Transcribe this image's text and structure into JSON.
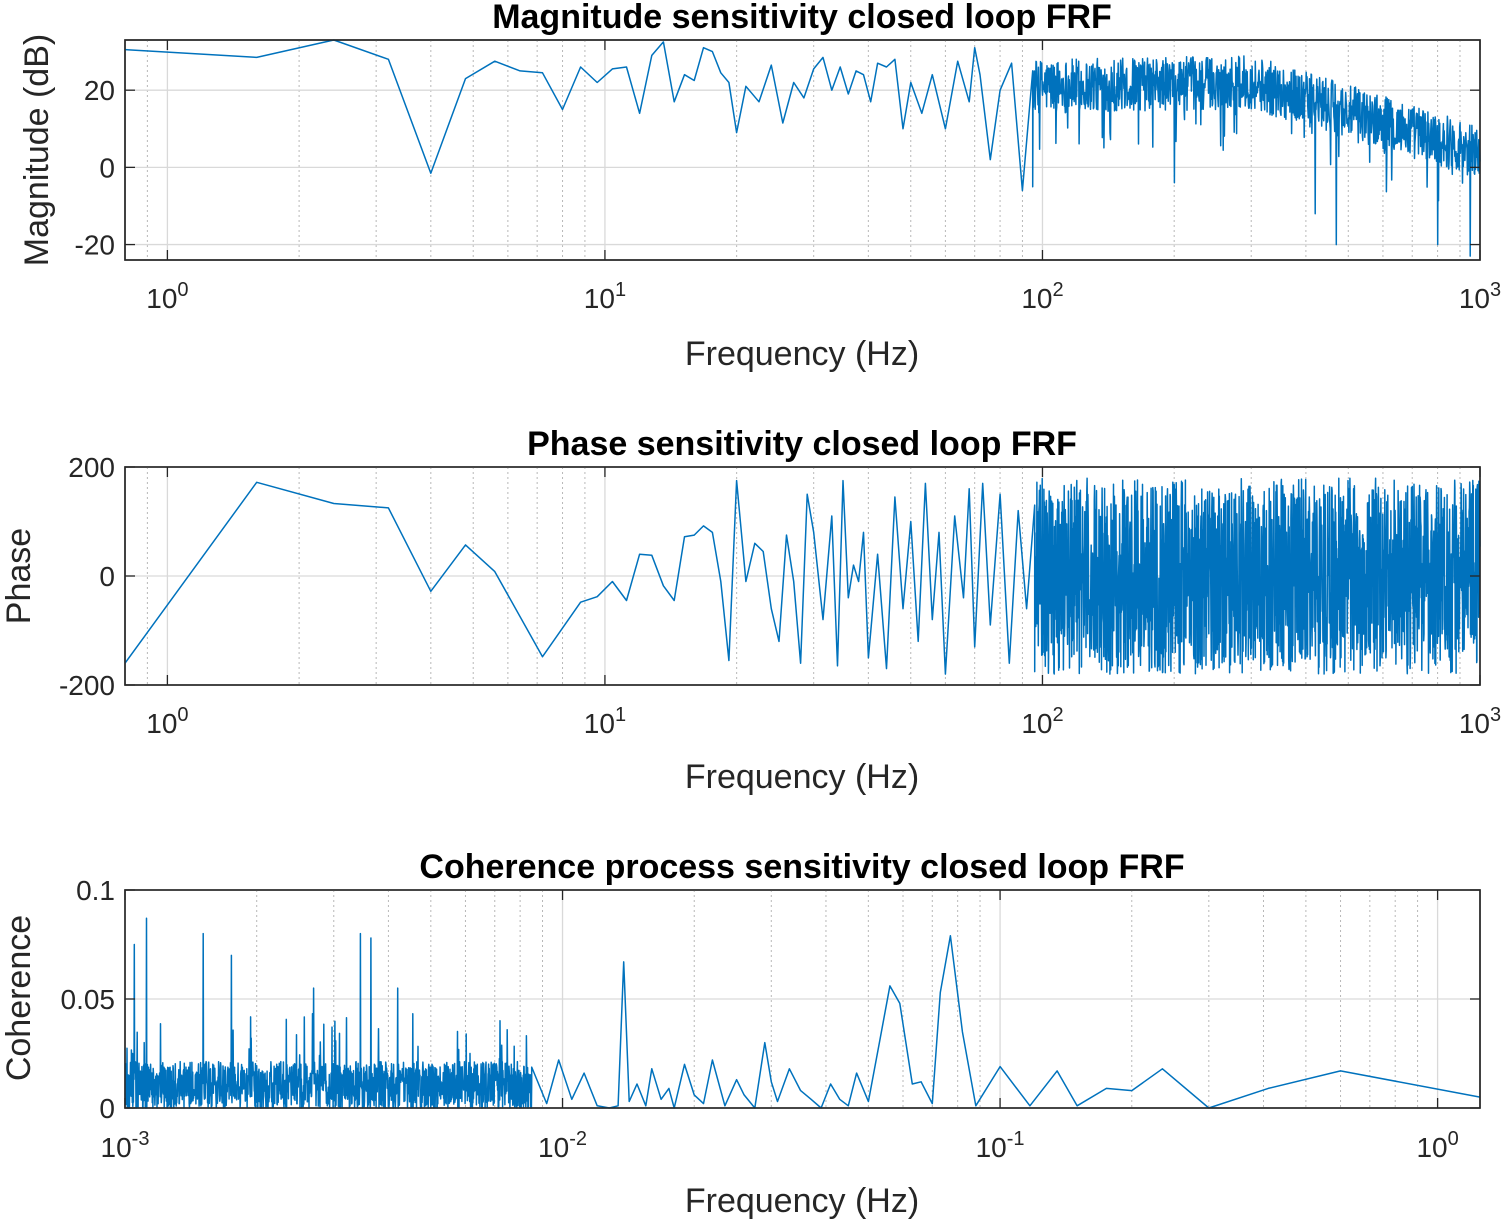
{
  "chart_data": [
    {
      "type": "line",
      "title": "Magnitude sensitivity closed loop FRF",
      "xlabel": "Frequency (Hz)",
      "ylabel": "Magnitude (dB)",
      "xscale": "log",
      "xlim": [
        0.8,
        1000
      ],
      "ylim": [
        -24,
        33
      ],
      "xticks": [
        {
          "base": "10",
          "exp": "0",
          "value": 1
        },
        {
          "base": "10",
          "exp": "1",
          "value": 10
        },
        {
          "base": "10",
          "exp": "2",
          "value": 100
        },
        {
          "base": "10",
          "exp": "3",
          "value": 1000
        }
      ],
      "yticks": [
        {
          "label": "-20",
          "value": -20
        },
        {
          "label": "0",
          "value": 0
        },
        {
          "label": "20",
          "value": 20
        }
      ],
      "grid": true,
      "color": "#0072BD",
      "series": [
        {
          "name": "magnitude",
          "x": [
            0.8,
            1.6,
            2.4,
            3.2,
            4.0,
            4.8,
            5.6,
            6.4,
            7.2,
            8.0,
            8.8,
            9.6,
            10.4,
            11.2,
            12.0,
            12.8,
            13.6,
            14.4,
            15.2,
            16.0,
            16.8,
            17.6,
            18.4,
            19.2,
            20.0,
            21.0,
            22.5,
            24.0,
            25.5,
            27.0,
            28.5,
            30.0,
            31.5,
            33.0,
            34.5,
            36.0,
            37.5,
            39.0,
            40.5,
            42.0,
            44.0,
            46.0,
            48.0,
            50.0,
            53.0,
            56.0,
            60.0,
            64.0,
            68.0,
            70.0,
            72.0,
            76.0,
            80.0,
            85.0,
            90.0,
            95.0
          ],
          "y": [
            30.5,
            28.5,
            33.0,
            28.0,
            -1.5,
            23.0,
            27.5,
            25.0,
            24.5,
            15.0,
            26.0,
            22.0,
            25.5,
            26.0,
            14.0,
            29.0,
            32.5,
            17.0,
            24.0,
            22.5,
            31.0,
            30.0,
            24.5,
            22.0,
            9.0,
            21.0,
            17.0,
            26.5,
            11.5,
            22.0,
            18.0,
            25.5,
            28.5,
            20.0,
            26.0,
            19.0,
            25.0,
            24.0,
            17.0,
            27.0,
            26.0,
            28.0,
            10.0,
            22.0,
            14.0,
            24.0,
            10.0,
            27.5,
            17.0,
            31.0,
            24.0,
            2.0,
            20.0,
            27.0,
            -6.0,
            25.0
          ]
        }
      ],
      "dense_region": {
        "from": 95,
        "to": 1000,
        "points": 1100,
        "center_start": 21,
        "center_mid": 22,
        "center_mid_at": 300,
        "center_end": 4,
        "spread": 7,
        "dips": [
          {
            "x": 84,
            "y": -5
          },
          {
            "x": 200,
            "y": -4
          },
          {
            "x": 420,
            "y": -12
          },
          {
            "x": 470,
            "y": -20
          },
          {
            "x": 800,
            "y": -20
          },
          {
            "x": 950,
            "y": -23
          }
        ]
      }
    },
    {
      "type": "line",
      "title": "Phase sensitivity closed loop FRF",
      "xlabel": "Frequency (Hz)",
      "ylabel": "Phase",
      "xscale": "log",
      "xlim": [
        0.8,
        1000
      ],
      "ylim": [
        -200,
        200
      ],
      "xticks": [
        {
          "base": "10",
          "exp": "0",
          "value": 1
        },
        {
          "base": "10",
          "exp": "1",
          "value": 10
        },
        {
          "base": "10",
          "exp": "2",
          "value": 100
        },
        {
          "base": "10",
          "exp": "3",
          "value": 1000
        }
      ],
      "yticks": [
        {
          "label": "-200",
          "value": -200
        },
        {
          "label": "0",
          "value": 0
        },
        {
          "label": "200",
          "value": 200
        }
      ],
      "grid": true,
      "color": "#0072BD",
      "series": [
        {
          "name": "phase",
          "x": [
            0.8,
            1.6,
            2.4,
            3.2,
            4.0,
            4.8,
            5.6,
            7.2,
            8.8,
            9.6,
            10.4,
            11.2,
            12.0,
            12.8,
            13.6,
            14.4,
            15.2,
            16.0,
            16.8,
            17.6,
            18.4,
            19.2,
            20.0,
            21.0,
            22.0,
            23.0,
            24.0,
            25.0,
            26.0,
            27.0,
            28.0,
            29.0,
            30.0,
            31.5,
            33.0,
            34.0,
            35.0,
            36.0,
            37.0,
            38.0,
            39.0,
            40.0,
            42.0,
            44.0,
            46.0,
            48.0,
            50.0,
            52.0,
            54.0,
            56.0,
            58.0,
            60.0,
            63.0,
            66.0,
            68.0,
            70.0,
            73.0,
            76.0,
            80.0,
            84.0,
            88.0,
            92.0,
            96.0
          ],
          "y": [
            -160,
            172,
            133,
            125,
            -28,
            57,
            8,
            -148,
            -48,
            -38,
            -10,
            -45,
            40,
            38,
            -18,
            -45,
            72,
            75,
            92,
            80,
            -10,
            -155,
            175,
            -10,
            60,
            45,
            -60,
            -120,
            75,
            -10,
            -160,
            150,
            80,
            -80,
            110,
            -165,
            175,
            -40,
            20,
            -10,
            80,
            -150,
            40,
            -170,
            145,
            -60,
            100,
            -120,
            170,
            -80,
            80,
            -180,
            110,
            -40,
            160,
            -130,
            170,
            -90,
            150,
            -160,
            120,
            -60,
            130
          ]
        }
      ],
      "dense_region": {
        "from": 96,
        "to": 1000,
        "points": 1600,
        "center": 0,
        "spread": 180
      }
    },
    {
      "type": "line",
      "title": "Coherence process sensitivity closed loop FRF",
      "xlabel": "Frequency (Hz)",
      "ylabel": "Coherence",
      "xscale": "log",
      "xlim": [
        0.001,
        1.25
      ],
      "ylim": [
        0,
        0.1
      ],
      "xticks": [
        {
          "base": "10",
          "exp": "-3",
          "value": 0.001
        },
        {
          "base": "10",
          "exp": "-2",
          "value": 0.01
        },
        {
          "base": "10",
          "exp": "-1",
          "value": 0.1
        },
        {
          "base": "10",
          "exp": "0",
          "value": 1
        }
      ],
      "yticks": [
        {
          "label": "0",
          "value": 0
        },
        {
          "label": "0.05",
          "value": 0.05
        },
        {
          "label": "0.1",
          "value": 0.1
        }
      ],
      "grid": true,
      "color": "#0072BD",
      "series": [
        {
          "name": "coherence",
          "x": [
            0.0085,
            0.0092,
            0.0098,
            0.0105,
            0.0112,
            0.012,
            0.0128,
            0.0134,
            0.0138,
            0.0142,
            0.0148,
            0.0155,
            0.016,
            0.0168,
            0.0175,
            0.018,
            0.019,
            0.02,
            0.021,
            0.022,
            0.0235,
            0.025,
            0.026,
            0.0275,
            0.029,
            0.03,
            0.031,
            0.033,
            0.035,
            0.037,
            0.039,
            0.041,
            0.043,
            0.045,
            0.047,
            0.05,
            0.053,
            0.056,
            0.059,
            0.063,
            0.066,
            0.07,
            0.073,
            0.077,
            0.082,
            0.088,
            0.1,
            0.117,
            0.135,
            0.15,
            0.175,
            0.2,
            0.235,
            0.3,
            0.41,
            0.6,
            1.25
          ],
          "y": [
            0.012,
            0.002,
            0.022,
            0.004,
            0.016,
            0.001,
            0.0,
            0.001,
            0.067,
            0.003,
            0.011,
            0.001,
            0.018,
            0.004,
            0.009,
            0.0,
            0.02,
            0.006,
            0.002,
            0.022,
            0.001,
            0.013,
            0.006,
            0.0,
            0.03,
            0.012,
            0.003,
            0.018,
            0.008,
            0.004,
            0.0,
            0.011,
            0.004,
            0.001,
            0.016,
            0.003,
            0.03,
            0.056,
            0.048,
            0.011,
            0.012,
            0.002,
            0.053,
            0.079,
            0.035,
            0.001,
            0.019,
            0.001,
            0.017,
            0.001,
            0.009,
            0.008,
            0.018,
            0.0,
            0.009,
            0.017,
            0.005
          ]
        }
      ],
      "dense_region": {
        "from": 0.001,
        "to": 0.0085,
        "points": 1400,
        "center": 0.009,
        "spread": 0.014,
        "spikes": [
          {
            "x": 0.00112,
            "y": 0.087
          },
          {
            "x": 0.00151,
            "y": 0.08
          },
          {
            "x": 0.00105,
            "y": 0.075
          },
          {
            "x": 0.00345,
            "y": 0.08
          },
          {
            "x": 0.00365,
            "y": 0.078
          },
          {
            "x": 0.00175,
            "y": 0.07
          },
          {
            "x": 0.0027,
            "y": 0.055
          },
          {
            "x": 0.0042,
            "y": 0.055
          },
          {
            "x": 0.0072,
            "y": 0.04
          }
        ]
      }
    }
  ]
}
